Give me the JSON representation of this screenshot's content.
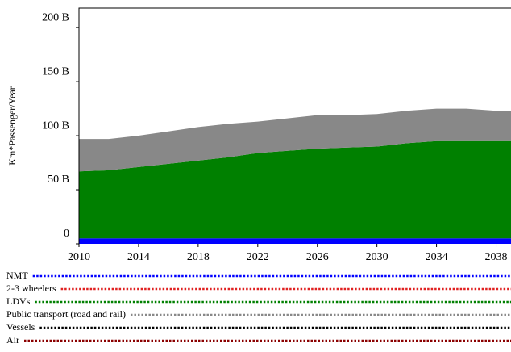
{
  "chart_data": {
    "type": "stacked_area",
    "y_label": "Km*Passenger/Year",
    "x": [
      2010,
      2012,
      2014,
      2016,
      2018,
      2020,
      2022,
      2024,
      2026,
      2028,
      2030,
      2032,
      2034,
      2036,
      2038,
      2039
    ],
    "xlim": [
      2010,
      2039
    ],
    "xticks": [
      2010,
      2014,
      2018,
      2022,
      2026,
      2030,
      2034,
      2038
    ],
    "ylim": [
      0,
      218
    ],
    "yticks": [
      {
        "value": 0,
        "label": "0"
      },
      {
        "value": 50,
        "label": "50 B"
      },
      {
        "value": 100,
        "label": "100 B"
      },
      {
        "value": 150,
        "label": "150 B"
      },
      {
        "value": 200,
        "label": "200 B"
      }
    ],
    "series": [
      {
        "name": "NMT",
        "color": "#0000ff",
        "values": [
          5,
          5,
          5,
          5,
          5,
          5,
          5,
          5,
          5,
          5,
          5,
          5,
          5,
          5,
          5,
          5
        ]
      },
      {
        "name": "2-3 wheelers",
        "color": "#e02020",
        "values": [
          0,
          0,
          0,
          0,
          0,
          0,
          0,
          0,
          0,
          0,
          0,
          0,
          0,
          0,
          0,
          0
        ]
      },
      {
        "name": "LDVs",
        "color": "#008000",
        "values": [
          62,
          63,
          66,
          69,
          72,
          75,
          79,
          81,
          83,
          84,
          85,
          88,
          90,
          90,
          90,
          90
        ]
      },
      {
        "name": "Public transport (road and rail)",
        "color": "#888888",
        "values": [
          30,
          29,
          29,
          30,
          31,
          31,
          29,
          30,
          31,
          30,
          30,
          30,
          30,
          30,
          28,
          28
        ]
      },
      {
        "name": "Vessels",
        "color": "#000000",
        "values": [
          0,
          0,
          0,
          0,
          0,
          0,
          0,
          0,
          0,
          0,
          0,
          0,
          0,
          0,
          0,
          0
        ]
      },
      {
        "name": "Air",
        "color": "#8b0000",
        "values": [
          0,
          0,
          0,
          0,
          0,
          0,
          0,
          0,
          0,
          0,
          0,
          0,
          0,
          0,
          0,
          0
        ]
      }
    ]
  }
}
